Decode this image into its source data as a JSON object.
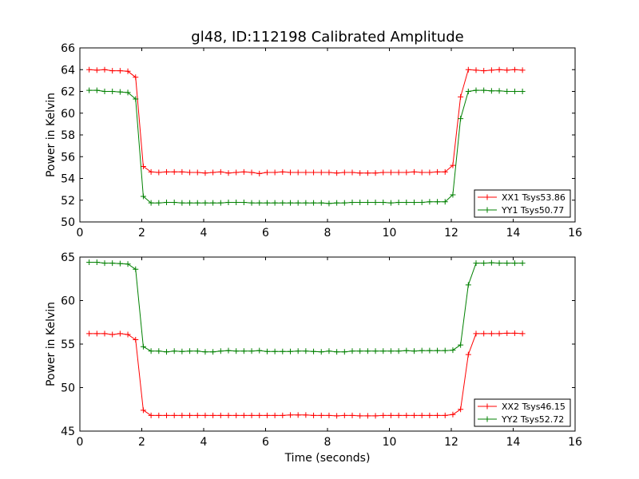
{
  "figure_title": "gl48, ID:112198 Calibrated Amplitude",
  "chart_data": [
    {
      "type": "line",
      "title": "gl48, ID:112198 Calibrated Amplitude",
      "xlabel": "",
      "ylabel": "Power in Kelvin",
      "xlim": [
        0,
        16
      ],
      "ylim": [
        50,
        66
      ],
      "xticks": [
        "0",
        "2",
        "4",
        "6",
        "8",
        "10",
        "12",
        "14",
        "16"
      ],
      "yticks": [
        "50",
        "52",
        "54",
        "56",
        "58",
        "60",
        "62",
        "64",
        "66"
      ],
      "grid": false,
      "legend_position": "lower right",
      "x": [
        0.3,
        0.55,
        0.8,
        1.05,
        1.3,
        1.55,
        1.8,
        2.05,
        2.3,
        2.55,
        2.8,
        3.05,
        3.3,
        3.55,
        3.8,
        4.05,
        4.3,
        4.55,
        4.8,
        5.05,
        5.3,
        5.55,
        5.8,
        6.05,
        6.3,
        6.55,
        6.8,
        7.05,
        7.3,
        7.55,
        7.8,
        8.05,
        8.3,
        8.55,
        8.8,
        9.05,
        9.3,
        9.55,
        9.8,
        10.05,
        10.3,
        10.55,
        10.8,
        11.05,
        11.3,
        11.55,
        11.8,
        12.05,
        12.3,
        12.55,
        12.8,
        13.05,
        13.3,
        13.55,
        13.8,
        14.05,
        14.3
      ],
      "series": [
        {
          "name": "XX1 Tsys53.86",
          "color": "#ff0000",
          "values": [
            64.0,
            63.95,
            64.0,
            63.9,
            63.9,
            63.85,
            63.3,
            55.1,
            54.6,
            54.55,
            54.6,
            54.6,
            54.6,
            54.55,
            54.55,
            54.5,
            54.55,
            54.6,
            54.5,
            54.55,
            54.6,
            54.55,
            54.45,
            54.55,
            54.55,
            54.6,
            54.55,
            54.55,
            54.55,
            54.55,
            54.55,
            54.55,
            54.5,
            54.55,
            54.55,
            54.5,
            54.5,
            54.5,
            54.55,
            54.55,
            54.55,
            54.55,
            54.6,
            54.55,
            54.55,
            54.6,
            54.6,
            55.2,
            61.5,
            64.0,
            63.95,
            63.9,
            63.95,
            64.0,
            63.95,
            64.0,
            63.95
          ]
        },
        {
          "name": "YY1 Tsys50.77",
          "color": "#008000",
          "values": [
            62.1,
            62.1,
            62.0,
            62.0,
            61.95,
            61.9,
            61.3,
            52.35,
            51.75,
            51.75,
            51.8,
            51.8,
            51.75,
            51.75,
            51.75,
            51.75,
            51.75,
            51.75,
            51.8,
            51.8,
            51.8,
            51.75,
            51.75,
            51.75,
            51.75,
            51.75,
            51.75,
            51.75,
            51.75,
            51.75,
            51.75,
            51.7,
            51.75,
            51.75,
            51.8,
            51.8,
            51.8,
            51.8,
            51.8,
            51.75,
            51.8,
            51.8,
            51.8,
            51.8,
            51.85,
            51.85,
            51.85,
            52.5,
            59.5,
            62.0,
            62.1,
            62.1,
            62.05,
            62.05,
            62.0,
            62.0,
            62.0
          ]
        }
      ]
    },
    {
      "type": "line",
      "title": "",
      "xlabel": "Time (seconds)",
      "ylabel": "Power in Kelvin",
      "xlim": [
        0,
        16
      ],
      "ylim": [
        45,
        65
      ],
      "xticks": [
        "0",
        "2",
        "4",
        "6",
        "8",
        "10",
        "12",
        "14",
        "16"
      ],
      "yticks": [
        "45",
        "50",
        "55",
        "60",
        "65"
      ],
      "grid": false,
      "legend_position": "lower right",
      "x": [
        0.3,
        0.55,
        0.8,
        1.05,
        1.3,
        1.55,
        1.8,
        2.05,
        2.3,
        2.55,
        2.8,
        3.05,
        3.3,
        3.55,
        3.8,
        4.05,
        4.3,
        4.55,
        4.8,
        5.05,
        5.3,
        5.55,
        5.8,
        6.05,
        6.3,
        6.55,
        6.8,
        7.05,
        7.3,
        7.55,
        7.8,
        8.05,
        8.3,
        8.55,
        8.8,
        9.05,
        9.3,
        9.55,
        9.8,
        10.05,
        10.3,
        10.55,
        10.8,
        11.05,
        11.3,
        11.55,
        11.8,
        12.05,
        12.3,
        12.55,
        12.8,
        13.05,
        13.3,
        13.55,
        13.8,
        14.05,
        14.3
      ],
      "series": [
        {
          "name": "XX2 Tsys46.15",
          "color": "#ff0000",
          "values": [
            56.2,
            56.2,
            56.2,
            56.1,
            56.2,
            56.1,
            55.5,
            47.4,
            46.8,
            46.8,
            46.8,
            46.8,
            46.8,
            46.8,
            46.8,
            46.8,
            46.8,
            46.8,
            46.8,
            46.8,
            46.8,
            46.8,
            46.8,
            46.8,
            46.8,
            46.8,
            46.85,
            46.85,
            46.85,
            46.8,
            46.8,
            46.8,
            46.75,
            46.8,
            46.8,
            46.75,
            46.75,
            46.75,
            46.8,
            46.8,
            46.8,
            46.8,
            46.8,
            46.8,
            46.8,
            46.8,
            46.8,
            46.9,
            47.5,
            53.8,
            56.2,
            56.2,
            56.2,
            56.2,
            56.25,
            56.25,
            56.2
          ]
        },
        {
          "name": "YY2 Tsys52.72",
          "color": "#008000",
          "values": [
            64.4,
            64.4,
            64.3,
            64.3,
            64.25,
            64.2,
            63.6,
            54.7,
            54.2,
            54.2,
            54.1,
            54.2,
            54.15,
            54.2,
            54.2,
            54.1,
            54.1,
            54.2,
            54.25,
            54.2,
            54.2,
            54.2,
            54.25,
            54.15,
            54.15,
            54.15,
            54.15,
            54.2,
            54.2,
            54.15,
            54.1,
            54.2,
            54.1,
            54.1,
            54.2,
            54.2,
            54.2,
            54.2,
            54.2,
            54.2,
            54.2,
            54.25,
            54.2,
            54.25,
            54.25,
            54.25,
            54.25,
            54.3,
            54.9,
            61.8,
            64.3,
            64.3,
            64.35,
            64.3,
            64.3,
            64.3,
            64.3
          ]
        }
      ]
    }
  ]
}
